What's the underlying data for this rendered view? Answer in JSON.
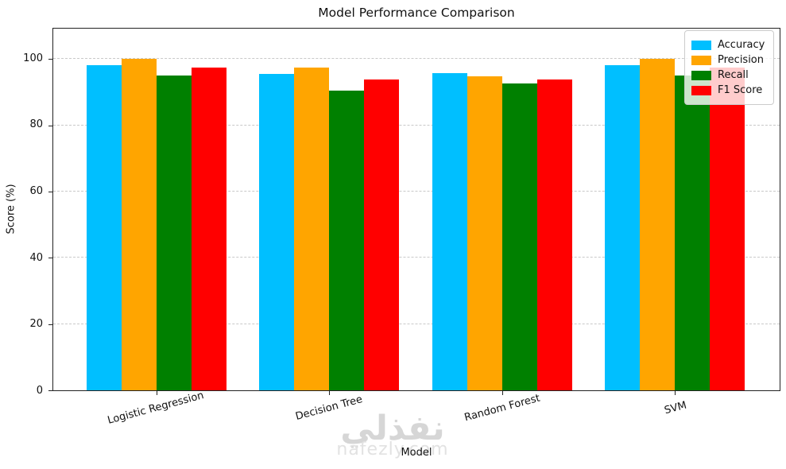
{
  "chart_data": {
    "type": "bar",
    "title": "Model Performance Comparison",
    "xlabel": "Model",
    "ylabel": "Score (%)",
    "categories": [
      "Logistic Regression",
      "Decision Tree",
      "Random Forest",
      "SVM"
    ],
    "series": [
      {
        "name": "Accuracy",
        "color": "#00BFFF",
        "values": [
          98.25,
          95.6,
          95.7,
          98.25
        ]
      },
      {
        "name": "Precision",
        "color": "#FFA500",
        "values": [
          100.0,
          97.4,
          94.9,
          100.0
        ]
      },
      {
        "name": "Recall",
        "color": "#008000",
        "values": [
          95.0,
          90.5,
          92.7,
          95.0
        ]
      },
      {
        "name": "F1 Score",
        "color": "#FF0000",
        "values": [
          97.4,
          93.8,
          93.8,
          97.4
        ]
      }
    ],
    "yticks": [
      0,
      20,
      40,
      60,
      80,
      100
    ],
    "ylim": [
      0,
      109.2
    ],
    "grid": "horizontal dashed",
    "legend_position": "upper right",
    "tick_label_rotation_deg": 15
  },
  "watermark": {
    "title": "نفذلي",
    "subtitle": "nafezly.com"
  }
}
